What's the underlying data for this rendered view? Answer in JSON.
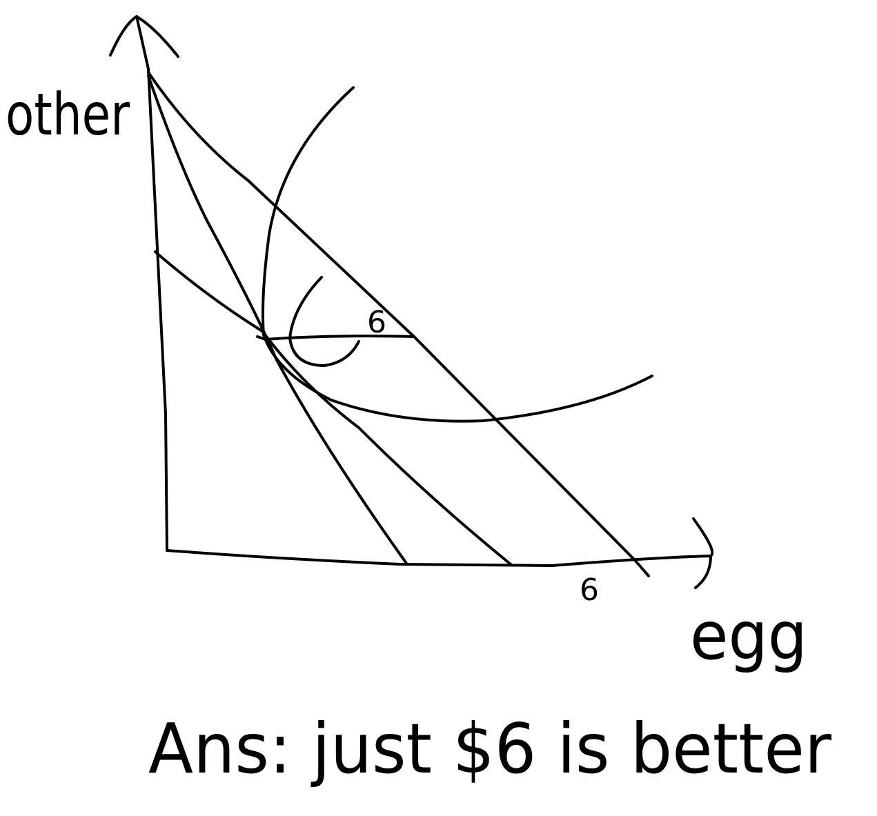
{
  "axes": {
    "y_label": "other",
    "x_label": "egg"
  },
  "annotations": {
    "upper_six": "6",
    "lower_six": "6"
  },
  "answer": "Ans: just $6 is better"
}
